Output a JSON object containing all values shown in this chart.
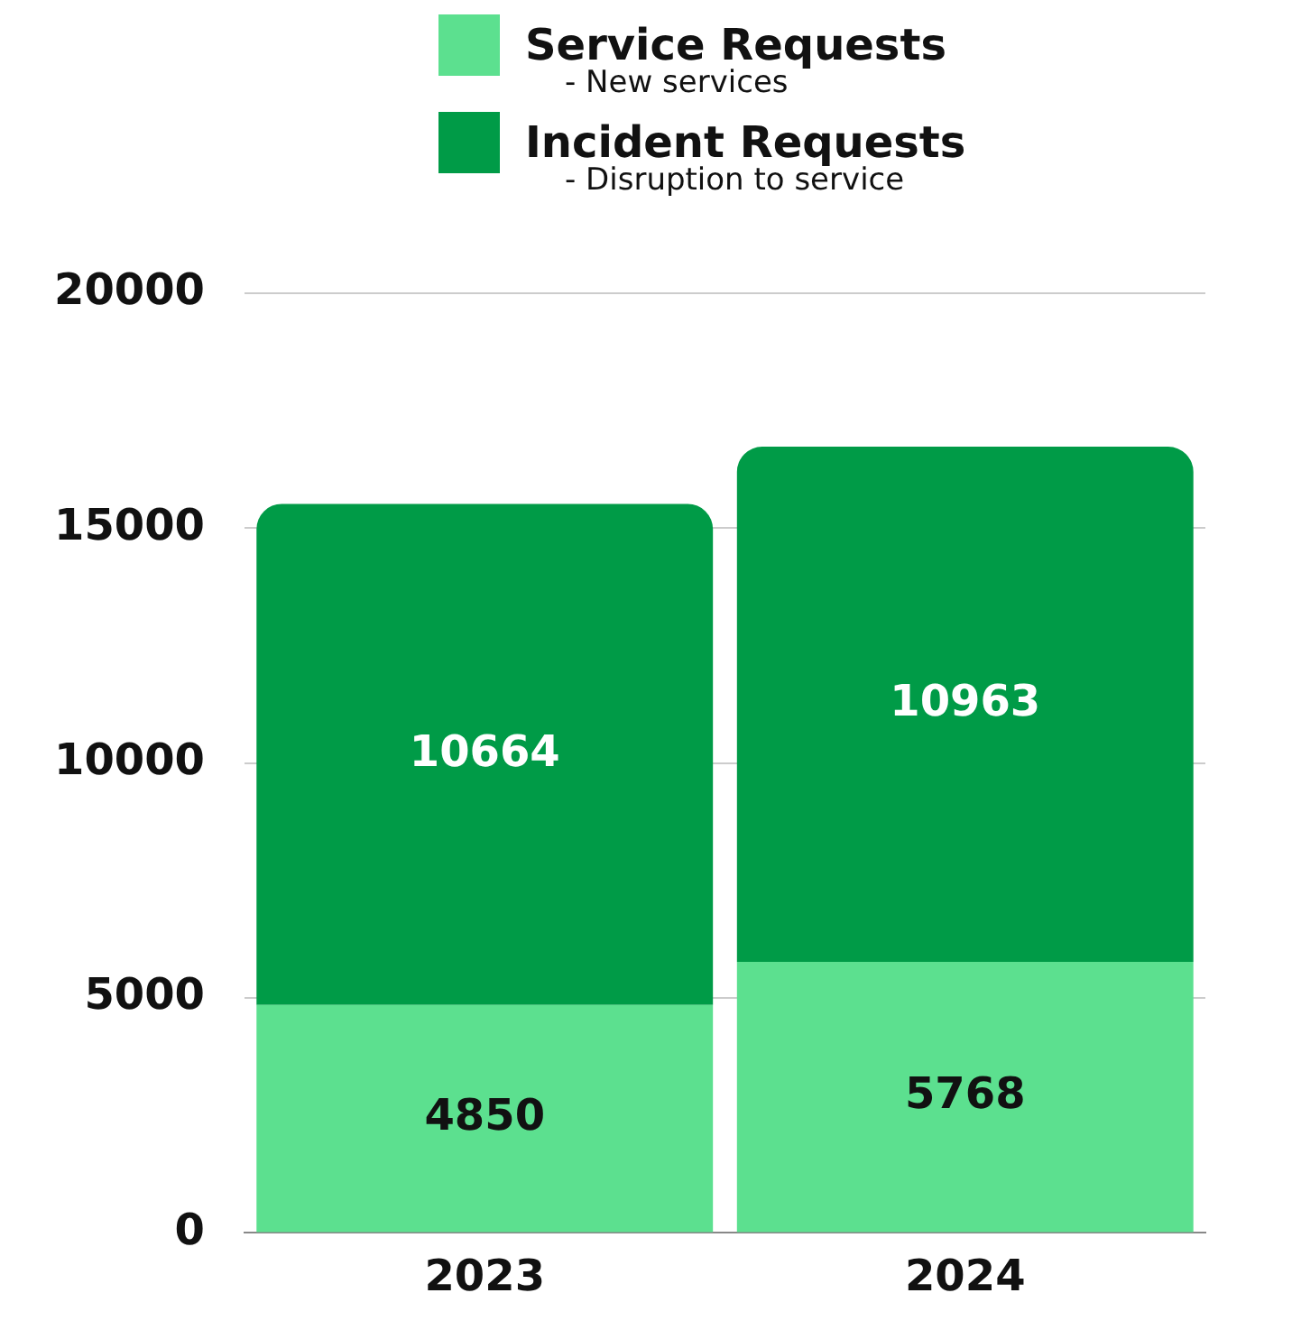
{
  "chart_data": {
    "type": "bar",
    "stacked": true,
    "categories": [
      "2023",
      "2024"
    ],
    "series": [
      {
        "name": "Service Requests",
        "color": "#5ce08f",
        "values": [
          4850,
          5768
        ]
      },
      {
        "name": "Incident Requests",
        "color": "#009b47",
        "values": [
          10664,
          10963
        ]
      }
    ],
    "annotations": [
      "- New services",
      "- Disruption to service"
    ],
    "ylim": [
      0,
      20000
    ],
    "yticks": [
      0,
      5000,
      10000,
      15000,
      20000
    ],
    "grid": "y",
    "legend": "top",
    "data_labels": true
  }
}
